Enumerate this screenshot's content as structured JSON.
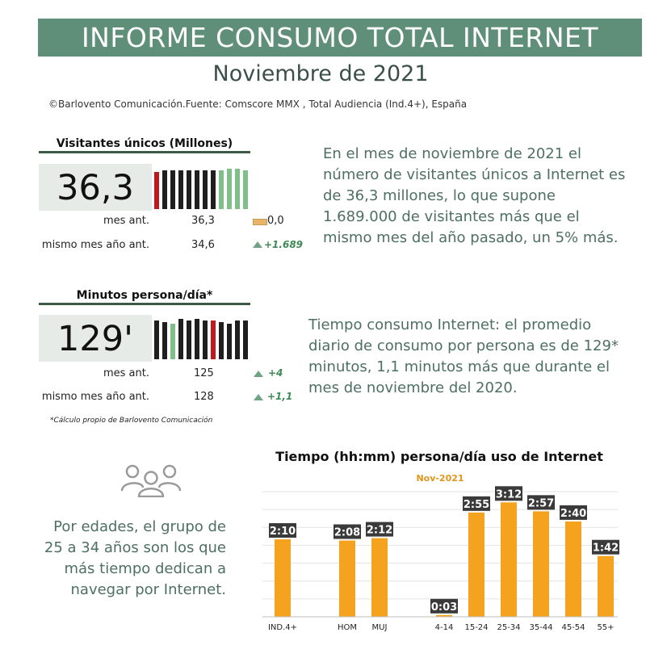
{
  "header": {
    "title": "INFORME CONSUMO TOTAL INTERNET",
    "subtitle": "Noviembre de 2021",
    "source": "©Barlovento Comunicación.Fuente: Comscore MMX , Total Audiencia (Ind.4+), España"
  },
  "visitors": {
    "title": "Visitantes únicos (Millones)",
    "value": "36,3",
    "rows": [
      {
        "label": "mes ant.",
        "value": "36,3",
        "delta": "0,0"
      },
      {
        "label": "mismo mes año ant.",
        "value": "34,6",
        "delta": "+1.689"
      }
    ],
    "description": "En el mes de noviembre de 2021 el número de visitantes únicos a Internet es de 36,3 millones, lo que supone 1.689.000 de  visitantes más  que el mismo mes del año pasado, un 5% más."
  },
  "minutes": {
    "title": "Minutos persona/día*",
    "value": "129'",
    "rows": [
      {
        "label": "mes ant.",
        "value": "125",
        "delta": "+4"
      },
      {
        "label": "mismo mes año ant.",
        "value": "128",
        "delta": "+1,1"
      }
    ],
    "description": "Tiempo consumo Internet: el promedio diario de consumo por persona es de 129* minutos, 1,1 minutos más que durante el mes de noviembre  del 2020.",
    "footnote": "*Cálculo propio de Barlovento Comunicación"
  },
  "age_text": "Por edades, el grupo de 25 a 34 años son los que más tiempo dedican a navegar por Internet.",
  "colors": {
    "title_bar": "#5f8f78",
    "bar": "#f5a21e",
    "spark_dark": "#1f1f1f",
    "spark_red": "#c0191e",
    "spark_green": "#7fbf8a",
    "positive": "#3f8a55",
    "neutral": "#e8b46a"
  },
  "icons": [
    "people-group-icon",
    "triangle-up-icon",
    "flat-bar-icon"
  ],
  "chart_data": {
    "type": "bar",
    "title": "Tiempo (hh:mm) persona/día uso de Internet",
    "subtitle": "Nov-2021",
    "categories": [
      "IND.4+",
      "",
      "HOM",
      "MUJ",
      "",
      "4-14",
      "15-24",
      "25-34",
      "35-44",
      "45-54",
      "55+"
    ],
    "values": [
      130,
      null,
      128,
      132,
      null,
      3,
      175,
      192,
      177,
      160,
      102
    ],
    "data_labels": [
      "2:10",
      "",
      "2:08",
      "2:12",
      "",
      "0:03",
      "2:55",
      "3:12",
      "2:57",
      "2:40",
      "1:42"
    ],
    "ylim": [
      0,
      210
    ],
    "grid": true
  }
}
